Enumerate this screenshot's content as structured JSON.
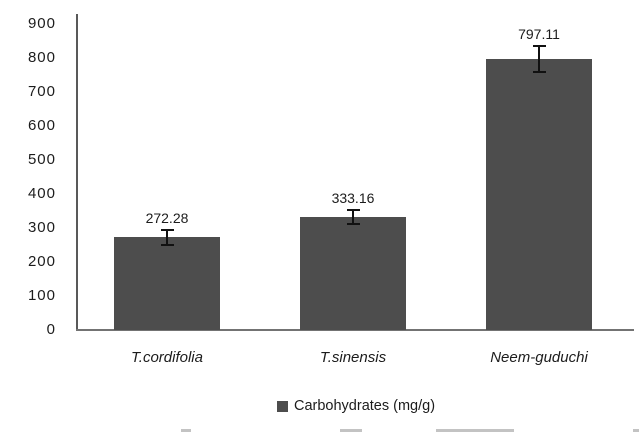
{
  "chart_data": {
    "type": "bar",
    "title": "",
    "categories": [
      "T.cordifolia",
      "T.sinensis",
      "Neem-guduchi"
    ],
    "series": [
      {
        "name": "Carbohydrates (mg/g)",
        "values": [
          272.28,
          333.16,
          797.11
        ],
        "error_bars": [
          26,
          24,
          41
        ]
      }
    ],
    "value_labels": [
      "272.28",
      "333.16",
      "797.11"
    ],
    "xlabel": "",
    "ylabel": "",
    "ylim": [
      0,
      900
    ],
    "yticks": [
      0,
      100,
      200,
      300,
      400,
      500,
      600,
      700,
      800,
      900
    ],
    "grid": false,
    "legend": {
      "position": "bottom",
      "entries": [
        {
          "label": "Carbohydrates (mg/g)",
          "marker": "square",
          "color": "#4d4d4d"
        }
      ]
    },
    "colors": {
      "bar": "#4d4d4d",
      "error_bar": "#111111",
      "axis": "#595959",
      "text": "#1c1c1c"
    }
  }
}
